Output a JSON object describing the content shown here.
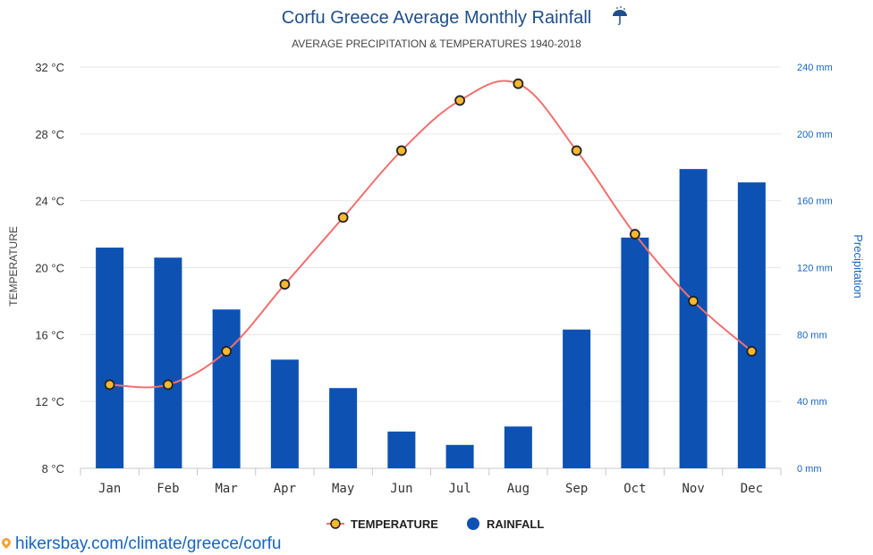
{
  "chart_data": {
    "type": "bar+line",
    "title": "Corfu Greece Average Monthly Rainfall",
    "title_icon": "umbrella-rain-icon",
    "subtitle": "AVERAGE PRECIPITATION & TEMPERATURES 1940-2018",
    "categories": [
      "Jan",
      "Feb",
      "Mar",
      "Apr",
      "May",
      "Jun",
      "Jul",
      "Aug",
      "Sep",
      "Oct",
      "Nov",
      "Dec"
    ],
    "y_left": {
      "label": "TEMPERATURE",
      "unit": "°C",
      "min": 8,
      "max": 32,
      "ticks": [
        "8 °C",
        "12 °C",
        "16 °C",
        "20 °C",
        "24 °C",
        "28 °C",
        "32 °C"
      ]
    },
    "y_right": {
      "label": "Precipitation",
      "unit": "mm",
      "min": 0,
      "max": 240,
      "ticks": [
        "0 mm",
        "40 mm",
        "80 mm",
        "120 mm",
        "160 mm",
        "200 mm",
        "240 mm"
      ]
    },
    "series": [
      {
        "name": "RAINFALL",
        "type": "bar",
        "axis": "right",
        "color": "#0d52b3",
        "values": [
          132,
          126,
          95,
          65,
          48,
          22,
          14,
          25,
          83,
          138,
          179,
          171
        ]
      },
      {
        "name": "TEMPERATURE",
        "type": "line",
        "axis": "left",
        "color": "#f07070",
        "marker_fill": "#f7b731",
        "values": [
          13,
          13,
          15,
          19,
          23,
          27,
          30,
          31,
          27,
          22,
          18,
          15
        ]
      }
    ],
    "grid": true,
    "legend_position": "bottom-center"
  },
  "source": {
    "text": "hikersbay.com/climate/greece/corfu",
    "icon": "location-pin-icon"
  }
}
